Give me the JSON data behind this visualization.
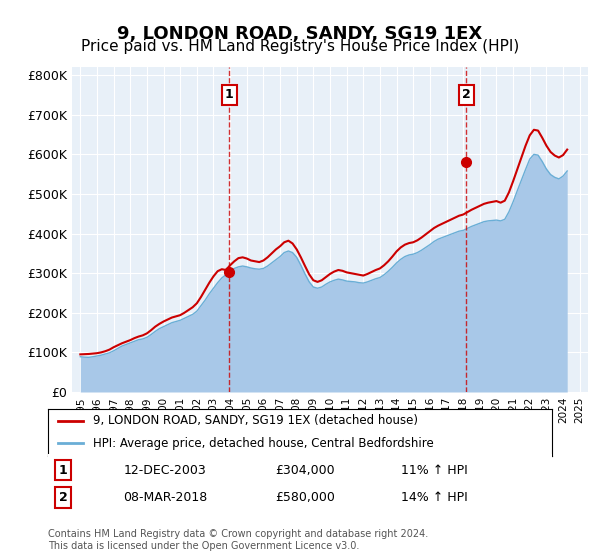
{
  "title": "9, LONDON ROAD, SANDY, SG19 1EX",
  "subtitle": "Price paid vs. HM Land Registry's House Price Index (HPI)",
  "title_fontsize": 13,
  "subtitle_fontsize": 11,
  "ylabel_ticks": [
    "£0",
    "£100K",
    "£200K",
    "£300K",
    "£400K",
    "£500K",
    "£600K",
    "£700K",
    "£800K"
  ],
  "ytick_values": [
    0,
    100000,
    200000,
    300000,
    400000,
    500000,
    600000,
    700000,
    800000
  ],
  "ylim": [
    0,
    820000
  ],
  "xlim_start": 1994.5,
  "xlim_end": 2025.5,
  "hpi_color": "#a8c8e8",
  "price_color": "#cc0000",
  "marker1_date_label": "12-DEC-2003",
  "marker1_price": "£304,000",
  "marker1_hpi": "11% ↑ HPI",
  "marker1_x": 2003.95,
  "marker1_y": 304000,
  "marker2_date_label": "08-MAR-2018",
  "marker2_price": "£580,000",
  "marker2_hpi": "14% ↑ HPI",
  "marker2_x": 2018.18,
  "marker2_y": 580000,
  "legend_label_price": "9, LONDON ROAD, SANDY, SG19 1EX (detached house)",
  "legend_label_hpi": "HPI: Average price, detached house, Central Bedfordshire",
  "footer": "Contains HM Land Registry data © Crown copyright and database right 2024.\nThis data is licensed under the Open Government Licence v3.0.",
  "background_color": "#ffffff",
  "plot_bg_color": "#e8f0f8",
  "grid_color": "#ffffff",
  "hpi_data_x": [
    1995.0,
    1995.25,
    1995.5,
    1995.75,
    1996.0,
    1996.25,
    1996.5,
    1996.75,
    1997.0,
    1997.25,
    1997.5,
    1997.75,
    1998.0,
    1998.25,
    1998.5,
    1998.75,
    1999.0,
    1999.25,
    1999.5,
    1999.75,
    2000.0,
    2000.25,
    2000.5,
    2000.75,
    2001.0,
    2001.25,
    2001.5,
    2001.75,
    2002.0,
    2002.25,
    2002.5,
    2002.75,
    2003.0,
    2003.25,
    2003.5,
    2003.75,
    2004.0,
    2004.25,
    2004.5,
    2004.75,
    2005.0,
    2005.25,
    2005.5,
    2005.75,
    2006.0,
    2006.25,
    2006.5,
    2006.75,
    2007.0,
    2007.25,
    2007.5,
    2007.75,
    2008.0,
    2008.25,
    2008.5,
    2008.75,
    2009.0,
    2009.25,
    2009.5,
    2009.75,
    2010.0,
    2010.25,
    2010.5,
    2010.75,
    2011.0,
    2011.25,
    2011.5,
    2011.75,
    2012.0,
    2012.25,
    2012.5,
    2012.75,
    2013.0,
    2013.25,
    2013.5,
    2013.75,
    2014.0,
    2014.25,
    2014.5,
    2014.75,
    2015.0,
    2015.25,
    2015.5,
    2015.75,
    2016.0,
    2016.25,
    2016.5,
    2016.75,
    2017.0,
    2017.25,
    2017.5,
    2017.75,
    2018.0,
    2018.25,
    2018.5,
    2018.75,
    2019.0,
    2019.25,
    2019.5,
    2019.75,
    2020.0,
    2020.25,
    2020.5,
    2020.75,
    2021.0,
    2021.25,
    2021.5,
    2021.75,
    2022.0,
    2022.25,
    2022.5,
    2022.75,
    2023.0,
    2023.25,
    2023.5,
    2023.75,
    2024.0,
    2024.25
  ],
  "hpi_data_y": [
    89000,
    88000,
    87500,
    89000,
    91000,
    93000,
    96000,
    99000,
    104000,
    110000,
    116000,
    120000,
    124000,
    128000,
    132000,
    134000,
    138000,
    145000,
    153000,
    160000,
    165000,
    170000,
    175000,
    178000,
    181000,
    186000,
    191000,
    196000,
    204000,
    218000,
    232000,
    248000,
    262000,
    276000,
    288000,
    296000,
    305000,
    312000,
    316000,
    318000,
    316000,
    313000,
    311000,
    310000,
    312000,
    318000,
    326000,
    334000,
    342000,
    352000,
    356000,
    352000,
    340000,
    320000,
    298000,
    278000,
    265000,
    262000,
    265000,
    272000,
    278000,
    282000,
    285000,
    283000,
    280000,
    279000,
    278000,
    276000,
    275000,
    278000,
    282000,
    286000,
    289000,
    296000,
    305000,
    315000,
    326000,
    335000,
    342000,
    346000,
    348000,
    352000,
    358000,
    365000,
    372000,
    380000,
    386000,
    390000,
    394000,
    398000,
    402000,
    406000,
    408000,
    413000,
    418000,
    422000,
    426000,
    430000,
    432000,
    433000,
    434000,
    432000,
    436000,
    455000,
    480000,
    508000,
    535000,
    562000,
    588000,
    600000,
    598000,
    582000,
    563000,
    549000,
    542000,
    538000,
    545000,
    558000
  ],
  "price_data_x": [
    1995.0,
    1995.25,
    1995.5,
    1995.75,
    1996.0,
    1996.25,
    1996.5,
    1996.75,
    1997.0,
    1997.25,
    1997.5,
    1997.75,
    1998.0,
    1998.25,
    1998.5,
    1998.75,
    1999.0,
    1999.25,
    1999.5,
    1999.75,
    2000.0,
    2000.25,
    2000.5,
    2000.75,
    2001.0,
    2001.25,
    2001.5,
    2001.75,
    2002.0,
    2002.25,
    2002.5,
    2002.75,
    2003.0,
    2003.25,
    2003.5,
    2003.75,
    2004.0,
    2004.25,
    2004.5,
    2004.75,
    2005.0,
    2005.25,
    2005.5,
    2005.75,
    2006.0,
    2006.25,
    2006.5,
    2006.75,
    2007.0,
    2007.25,
    2007.5,
    2007.75,
    2008.0,
    2008.25,
    2008.5,
    2008.75,
    2009.0,
    2009.25,
    2009.5,
    2009.75,
    2010.0,
    2010.25,
    2010.5,
    2010.75,
    2011.0,
    2011.25,
    2011.5,
    2011.75,
    2012.0,
    2012.25,
    2012.5,
    2012.75,
    2013.0,
    2013.25,
    2013.5,
    2013.75,
    2014.0,
    2014.25,
    2014.5,
    2014.75,
    2015.0,
    2015.25,
    2015.5,
    2015.75,
    2016.0,
    2016.25,
    2016.5,
    2016.75,
    2017.0,
    2017.25,
    2017.5,
    2017.75,
    2018.0,
    2018.25,
    2018.5,
    2018.75,
    2019.0,
    2019.25,
    2019.5,
    2019.75,
    2020.0,
    2020.25,
    2020.5,
    2020.75,
    2021.0,
    2021.25,
    2021.5,
    2021.75,
    2022.0,
    2022.25,
    2022.5,
    2022.75,
    2023.0,
    2023.25,
    2023.5,
    2023.75,
    2024.0,
    2024.25
  ],
  "price_data_y": [
    95000,
    95500,
    96000,
    97000,
    98000,
    100000,
    103000,
    107000,
    113000,
    118000,
    123000,
    127000,
    131000,
    136000,
    140000,
    143000,
    148000,
    156000,
    165000,
    172000,
    178000,
    183000,
    188000,
    191000,
    194000,
    200000,
    207000,
    214000,
    224000,
    240000,
    258000,
    276000,
    292000,
    305000,
    310000,
    308000,
    320000,
    330000,
    338000,
    340000,
    337000,
    332000,
    330000,
    328000,
    332000,
    340000,
    350000,
    360000,
    368000,
    378000,
    382000,
    375000,
    360000,
    340000,
    318000,
    297000,
    282000,
    278000,
    282000,
    290000,
    298000,
    304000,
    308000,
    306000,
    302000,
    300000,
    298000,
    296000,
    294000,
    298000,
    303000,
    308000,
    312000,
    320000,
    330000,
    342000,
    355000,
    365000,
    372000,
    376000,
    378000,
    383000,
    390000,
    398000,
    406000,
    414000,
    420000,
    425000,
    430000,
    435000,
    440000,
    445000,
    448000,
    454000,
    460000,
    465000,
    470000,
    475000,
    478000,
    480000,
    482000,
    478000,
    483000,
    504000,
    532000,
    562000,
    592000,
    622000,
    648000,
    662000,
    660000,
    642000,
    622000,
    606000,
    597000,
    592000,
    598000,
    612000
  ],
  "xtick_years": [
    1995,
    1996,
    1997,
    1998,
    1999,
    2000,
    2001,
    2002,
    2003,
    2004,
    2005,
    2006,
    2007,
    2008,
    2009,
    2010,
    2011,
    2012,
    2013,
    2014,
    2015,
    2016,
    2017,
    2018,
    2019,
    2020,
    2021,
    2022,
    2023,
    2024,
    2025
  ]
}
